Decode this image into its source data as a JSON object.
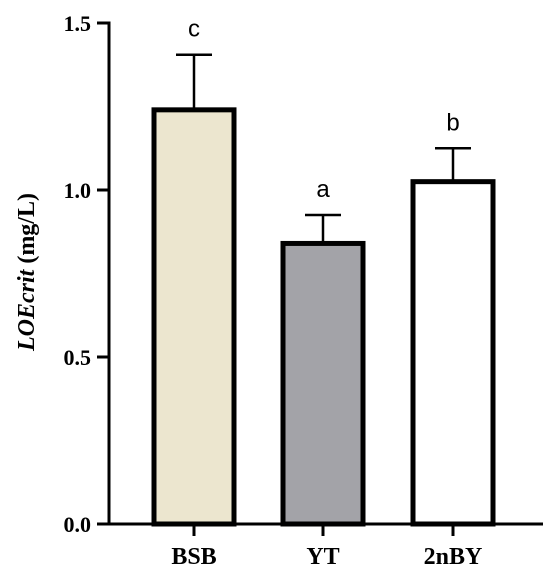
{
  "chart_data": {
    "type": "bar",
    "title": "",
    "xlabel": "",
    "ylabel": {
      "italic_part": "LOEcrit",
      "unit_part": " (mg/L)"
    },
    "ylim": [
      0,
      1.5
    ],
    "yticks": [
      0.0,
      0.5,
      1.0,
      1.5
    ],
    "ytick_labels": [
      "0.0",
      "0.5",
      "1.0",
      "1.5"
    ],
    "categories": [
      "BSB",
      "YT",
      "2nBY"
    ],
    "values": [
      1.24,
      0.84,
      1.025
    ],
    "errors": [
      0.165,
      0.085,
      0.1
    ],
    "significance_labels": [
      "c",
      "a",
      "b"
    ],
    "bar_colors": [
      "#ece6cf",
      "#a3a3a8",
      "#ffffff"
    ],
    "bar_edge_color": "#000000",
    "grid": false,
    "legend": "none"
  }
}
